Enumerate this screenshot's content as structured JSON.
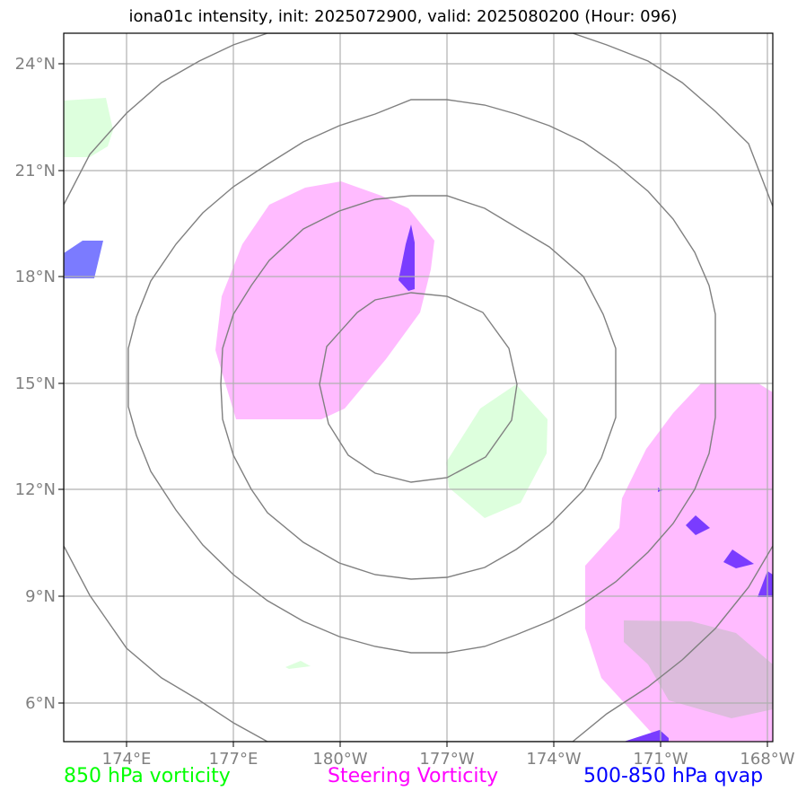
{
  "title": "iona01c intensity, init: 2025072900, valid: 2025080200 (Hour: 096)",
  "lat_labels": [
    "24°N",
    "21°N",
    "18°N",
    "15°N",
    "12°N",
    "9°N",
    "6°N"
  ],
  "lon_labels": [
    "174°E",
    "177°E",
    "180°W",
    "177°W",
    "174°W",
    "171°W",
    "168°W"
  ],
  "legend": [
    {
      "label": "850 hPa vorticity",
      "color": "#00ff00"
    },
    {
      "label": "Steering Vorticity",
      "color": "#ff00ff"
    },
    {
      "label": "500-850 hPa qvap",
      "color": "#0000ff"
    }
  ],
  "colors": {
    "vorticity_fill": "#ddffdd",
    "steering_fill": "#ffbbff",
    "qvap_fill": "#7b7bff",
    "qvap_dark": "#7a3cff",
    "overlap_fill": "#dcbcdc",
    "grid": "#b0b0b0",
    "rings": "#808080"
  }
}
